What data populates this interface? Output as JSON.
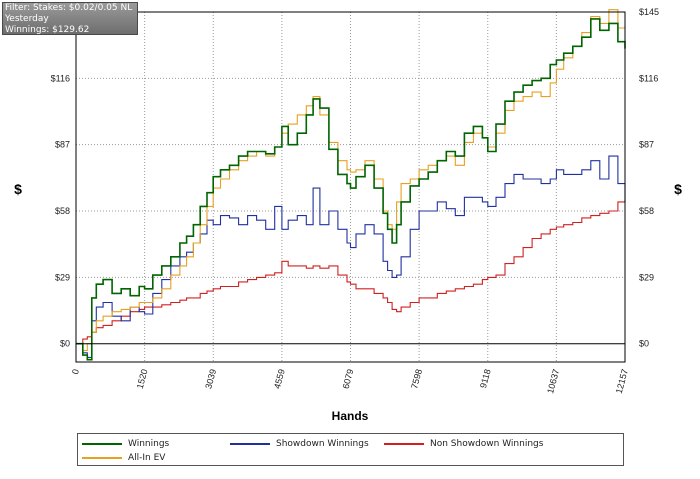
{
  "info": {
    "filter": "Filter: Stakes: $0.02/0.05 NL",
    "period": "Yesterday",
    "winnings": "Winnings: $129.62"
  },
  "chart_data": {
    "type": "line",
    "xlabel": "Hands",
    "ylabel": "$",
    "xlim": [
      0,
      12157
    ],
    "ylim": [
      -8,
      145
    ],
    "x_ticks": [
      0,
      1520,
      3039,
      4559,
      6079,
      7598,
      9118,
      10637,
      12157
    ],
    "y_ticks": [
      0,
      29,
      58,
      87,
      116,
      145
    ],
    "y_tick_labels": [
      "$0",
      "$29",
      "$58",
      "$87",
      "$116",
      "$145"
    ],
    "grid": "dotted",
    "legend_position": "bottom",
    "series": [
      {
        "name": "Winnings",
        "color": "#006400",
        "x": [
          0,
          150,
          250,
          350,
          450,
          600,
          800,
          1000,
          1200,
          1400,
          1520,
          1700,
          1900,
          2100,
          2300,
          2450,
          2600,
          2750,
          2900,
          3039,
          3200,
          3400,
          3600,
          3800,
          4000,
          4200,
          4400,
          4559,
          4700,
          4900,
          5100,
          5250,
          5400,
          5600,
          5800,
          6000,
          6079,
          6200,
          6400,
          6600,
          6800,
          6900,
          7000,
          7100,
          7200,
          7400,
          7598,
          7800,
          8000,
          8200,
          8400,
          8600,
          8800,
          9000,
          9118,
          9300,
          9500,
          9700,
          9900,
          10100,
          10300,
          10500,
          10637,
          10800,
          11000,
          11200,
          11400,
          11600,
          11800,
          12000,
          12157
        ],
        "y": [
          0,
          -5,
          -7,
          20,
          26,
          28,
          22,
          24,
          21,
          25,
          24,
          30,
          34,
          38,
          44,
          47,
          52,
          60,
          66,
          73,
          76,
          78,
          82,
          84,
          84,
          83,
          86,
          95,
          87,
          92,
          100,
          107,
          103,
          85,
          74,
          70,
          68,
          73,
          78,
          68,
          57,
          50,
          44,
          52,
          62,
          69,
          72,
          75,
          80,
          84,
          82,
          92,
          95,
          90,
          84,
          96,
          106,
          110,
          113,
          115,
          116,
          122,
          124,
          127,
          130,
          134,
          142,
          137,
          140,
          132,
          129
        ]
      },
      {
        "name": "All-In EV",
        "color": "#e8a020",
        "x": [
          0,
          150,
          250,
          350,
          450,
          600,
          800,
          1000,
          1200,
          1400,
          1520,
          1700,
          1900,
          2100,
          2300,
          2450,
          2600,
          2750,
          2900,
          3039,
          3200,
          3400,
          3600,
          3800,
          4000,
          4200,
          4400,
          4559,
          4700,
          4900,
          5100,
          5250,
          5400,
          5600,
          5800,
          6000,
          6079,
          6200,
          6400,
          6600,
          6800,
          6900,
          7000,
          7100,
          7200,
          7400,
          7598,
          7800,
          8000,
          8200,
          8400,
          8600,
          8800,
          9000,
          9118,
          9300,
          9500,
          9700,
          9900,
          10100,
          10300,
          10500,
          10637,
          10800,
          11000,
          11200,
          11400,
          11600,
          11800,
          12000,
          12157
        ],
        "y": [
          0,
          -3,
          0,
          5,
          10,
          12,
          14,
          15,
          16,
          18,
          18,
          20,
          24,
          30,
          34,
          38,
          44,
          52,
          60,
          68,
          72,
          76,
          80,
          82,
          84,
          82,
          86,
          92,
          96,
          100,
          104,
          108,
          100,
          88,
          80,
          76,
          75,
          76,
          80,
          72,
          58,
          52,
          50,
          62,
          70,
          72,
          76,
          78,
          80,
          82,
          78,
          88,
          92,
          90,
          86,
          92,
          102,
          106,
          108,
          110,
          108,
          114,
          120,
          125,
          130,
          136,
          143,
          140,
          146,
          138,
          139
        ]
      },
      {
        "name": "Showdown Winnings",
        "color": "#2030a0",
        "x": [
          0,
          150,
          250,
          350,
          450,
          600,
          800,
          1000,
          1200,
          1400,
          1520,
          1700,
          1900,
          2100,
          2300,
          2450,
          2600,
          2750,
          2900,
          3039,
          3200,
          3400,
          3600,
          3800,
          4000,
          4200,
          4400,
          4559,
          4700,
          4900,
          5100,
          5250,
          5400,
          5600,
          5800,
          6000,
          6079,
          6200,
          6400,
          6600,
          6800,
          6900,
          7000,
          7100,
          7200,
          7400,
          7598,
          7800,
          8000,
          8200,
          8400,
          8600,
          8800,
          9000,
          9118,
          9300,
          9500,
          9700,
          9900,
          10100,
          10300,
          10500,
          10637,
          10800,
          11000,
          11200,
          11400,
          11600,
          11800,
          12000,
          12157
        ],
        "y": [
          0,
          -4,
          -6,
          10,
          16,
          18,
          12,
          10,
          16,
          14,
          13,
          22,
          28,
          34,
          38,
          40,
          44,
          48,
          54,
          52,
          56,
          55,
          52,
          56,
          54,
          50,
          60,
          50,
          54,
          56,
          52,
          68,
          52,
          58,
          50,
          44,
          42,
          48,
          52,
          48,
          36,
          32,
          29,
          30,
          38,
          50,
          58,
          58,
          62,
          59,
          56,
          64,
          64,
          62,
          60,
          64,
          70,
          74,
          72,
          72,
          70,
          72,
          76,
          74,
          74,
          76,
          80,
          72,
          82,
          70,
          62
        ]
      },
      {
        "name": "Non Showdown Winnings",
        "color": "#d02020",
        "x": [
          0,
          150,
          250,
          350,
          450,
          600,
          800,
          1000,
          1200,
          1400,
          1520,
          1700,
          1900,
          2100,
          2300,
          2450,
          2600,
          2750,
          2900,
          3039,
          3200,
          3400,
          3600,
          3800,
          4000,
          4200,
          4400,
          4559,
          4700,
          4900,
          5100,
          5250,
          5400,
          5600,
          5800,
          6000,
          6079,
          6200,
          6400,
          6600,
          6800,
          6900,
          7000,
          7100,
          7200,
          7400,
          7598,
          7800,
          8000,
          8200,
          8400,
          8600,
          8800,
          9000,
          9118,
          9300,
          9500,
          9700,
          9900,
          10100,
          10300,
          10500,
          10637,
          10800,
          11000,
          11200,
          11400,
          11600,
          11800,
          12000,
          12157
        ],
        "y": [
          0,
          2,
          3,
          5,
          7,
          8,
          10,
          12,
          14,
          15,
          16,
          16,
          17,
          18,
          19,
          20,
          20,
          22,
          23,
          24,
          25,
          25,
          27,
          28,
          29,
          30,
          31,
          36,
          34,
          34,
          33,
          34,
          33,
          34,
          30,
          27,
          26,
          24,
          24,
          22,
          20,
          18,
          15,
          14,
          16,
          18,
          20,
          20,
          22,
          23,
          24,
          25,
          26,
          28,
          29,
          30,
          35,
          38,
          42,
          46,
          48,
          50,
          51,
          52,
          53,
          55,
          56,
          57,
          58,
          62,
          63
        ]
      }
    ]
  },
  "legend": {
    "items": [
      {
        "label": "Winnings",
        "color": "#006400"
      },
      {
        "label": "Showdown Winnings",
        "color": "#2030a0"
      },
      {
        "label": "Non Showdown Winnings",
        "color": "#d02020"
      },
      {
        "label": "All-In EV",
        "color": "#e8a020"
      }
    ]
  }
}
